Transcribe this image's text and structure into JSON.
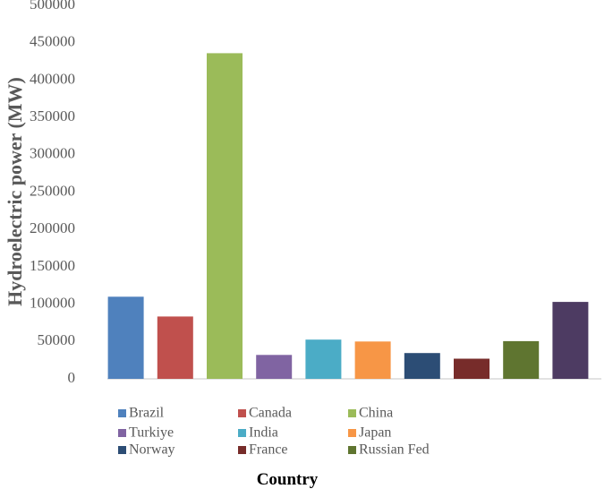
{
  "chart_data": {
    "type": "bar",
    "categories": [
      "Brazil",
      "Canada",
      "China",
      "Turkiye",
      "India",
      "Japan",
      "Norway",
      "France",
      "Russian Fed",
      ""
    ],
    "values": [
      110000,
      83500,
      436000,
      32000,
      52500,
      50000,
      34500,
      27000,
      50500,
      103000
    ],
    "colors": [
      "#4F81BD",
      "#C0504D",
      "#9BBB59",
      "#8064A2",
      "#4BACC6",
      "#F79646",
      "#2C4D75",
      "#772C2A",
      "#5F7530",
      "#4D3B62"
    ],
    "legend": [
      "Brazil",
      "Canada",
      "China",
      "Turkiye",
      "India",
      "Japan",
      "Norway",
      "France",
      "Russian Fed"
    ],
    "ylim": [
      0,
      500000
    ],
    "yticks": [
      "0",
      "50000",
      "100000",
      "150000",
      "200000",
      "250000",
      "300000",
      "350000",
      "400000",
      "450000",
      "500000"
    ],
    "xlabel": "Country",
    "ylabel": "Hydroelectric power (MW)",
    "grid": false,
    "legend_position": "bottom"
  }
}
